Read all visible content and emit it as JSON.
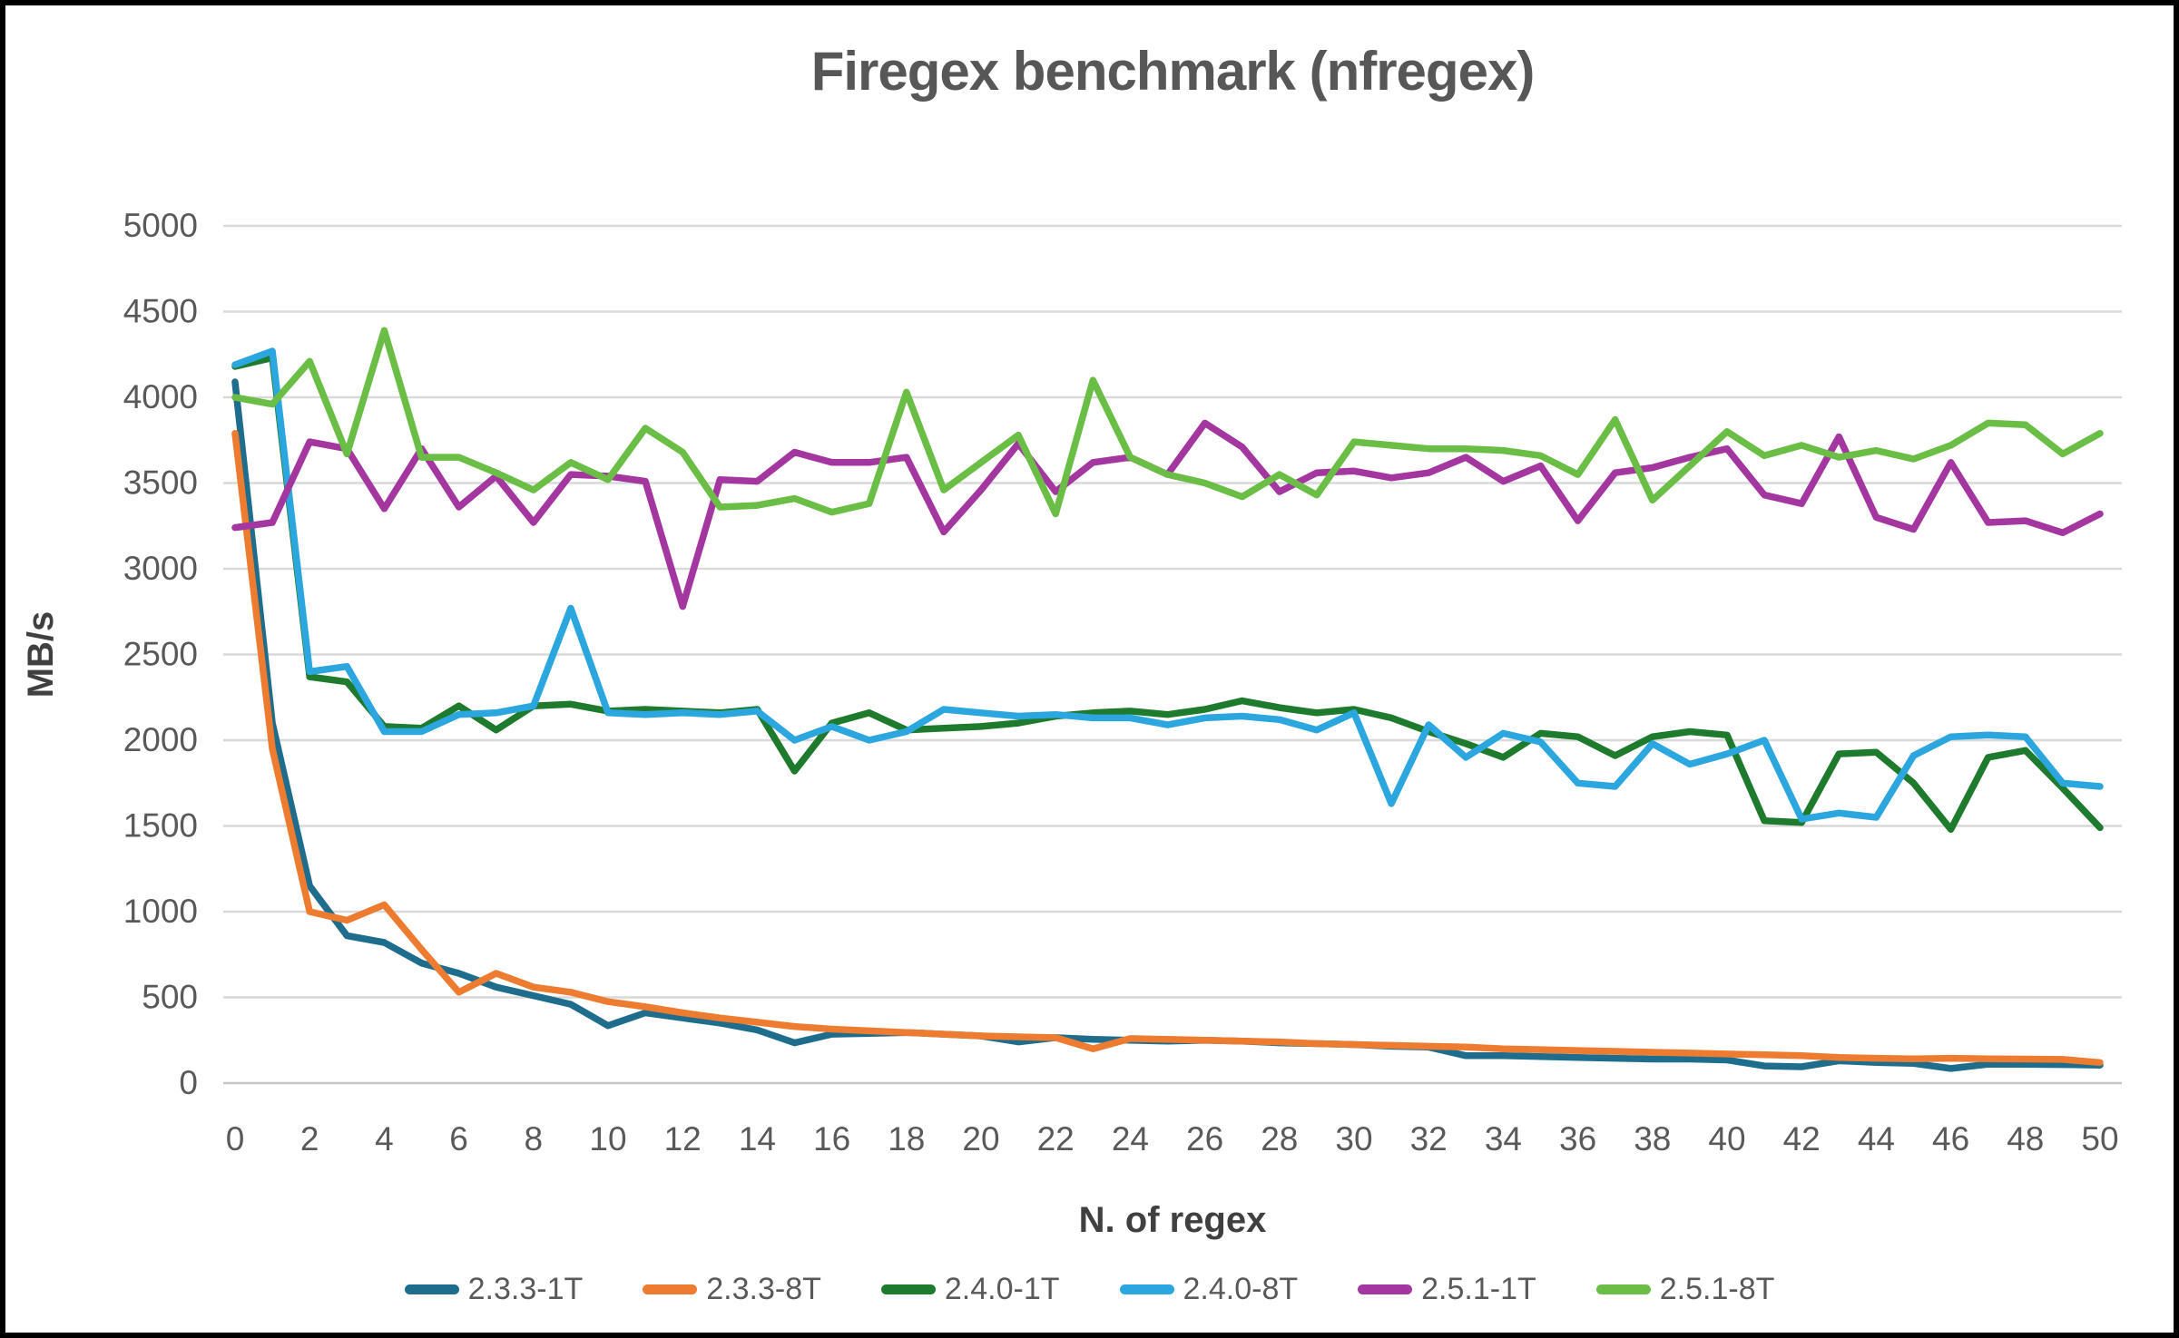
{
  "title": "Firegex benchmark (nfregex)",
  "chart_data": {
    "type": "line",
    "title": "Firegex benchmark (nfregex)",
    "xlabel": "N. of regex",
    "ylabel": "MB/s",
    "xlim": [
      0,
      50
    ],
    "ylim": [
      0,
      5000
    ],
    "x_ticks": [
      0,
      2,
      4,
      6,
      8,
      10,
      12,
      14,
      16,
      18,
      20,
      22,
      24,
      26,
      28,
      30,
      32,
      34,
      36,
      38,
      40,
      42,
      44,
      46,
      48,
      50
    ],
    "y_ticks": [
      0,
      500,
      1000,
      1500,
      2000,
      2500,
      3000,
      3500,
      4000,
      4500,
      5000
    ],
    "grid": true,
    "gridline_color": "#d9d9d9",
    "axis_label_color": "#595959",
    "legend_position": "bottom",
    "x": [
      0,
      1,
      2,
      3,
      4,
      5,
      6,
      7,
      8,
      9,
      10,
      11,
      12,
      13,
      14,
      15,
      16,
      17,
      18,
      19,
      20,
      21,
      22,
      23,
      24,
      25,
      26,
      27,
      28,
      29,
      30,
      31,
      32,
      33,
      34,
      35,
      36,
      37,
      38,
      39,
      40,
      41,
      42,
      43,
      44,
      45,
      46,
      47,
      48,
      49,
      50
    ],
    "series": [
      {
        "name": "2.3.3-1T",
        "color": "#1F6D8C",
        "values": [
          4090,
          2100,
          1150,
          860,
          820,
          700,
          640,
          560,
          510,
          460,
          335,
          410,
          380,
          350,
          310,
          235,
          285,
          290,
          295,
          285,
          275,
          240,
          265,
          255,
          250,
          245,
          250,
          245,
          235,
          230,
          225,
          215,
          210,
          160,
          160,
          155,
          150,
          145,
          140,
          140,
          135,
          100,
          95,
          130,
          120,
          115,
          85,
          110,
          110,
          108,
          105
        ]
      },
      {
        "name": "2.3.3-8T",
        "color": "#ED7C31",
        "values": [
          3790,
          1950,
          1000,
          950,
          1040,
          780,
          530,
          640,
          560,
          530,
          475,
          445,
          410,
          380,
          355,
          330,
          315,
          305,
          295,
          285,
          275,
          270,
          265,
          200,
          260,
          255,
          250,
          245,
          240,
          230,
          225,
          220,
          215,
          210,
          200,
          195,
          190,
          185,
          180,
          175,
          170,
          165,
          160,
          150,
          145,
          142,
          145,
          142,
          140,
          138,
          120
        ]
      },
      {
        "name": "2.4.0-1T",
        "color": "#1E7B2D",
        "values": [
          4180,
          4230,
          2370,
          2340,
          2080,
          2070,
          2200,
          2060,
          2200,
          2210,
          2170,
          2180,
          2170,
          2160,
          2180,
          1820,
          2100,
          2160,
          2060,
          2070,
          2080,
          2100,
          2140,
          2160,
          2170,
          2150,
          2180,
          2230,
          2190,
          2160,
          2180,
          2130,
          2050,
          1980,
          1900,
          2040,
          2020,
          1910,
          2020,
          2050,
          2030,
          1530,
          1520,
          1920,
          1930,
          1750,
          1480,
          1900,
          1940,
          1720,
          1490
        ]
      },
      {
        "name": "2.4.0-8T",
        "color": "#2BA6DE",
        "values": [
          4190,
          4270,
          2400,
          2430,
          2050,
          2050,
          2150,
          2160,
          2200,
          2770,
          2160,
          2150,
          2160,
          2150,
          2170,
          2000,
          2080,
          2000,
          2050,
          2180,
          2160,
          2140,
          2150,
          2130,
          2130,
          2090,
          2130,
          2140,
          2120,
          2060,
          2160,
          1630,
          2090,
          1900,
          2040,
          1990,
          1750,
          1730,
          1980,
          1860,
          1920,
          2000,
          1540,
          1575,
          1550,
          1910,
          2020,
          2030,
          2020,
          1750,
          1730
        ]
      },
      {
        "name": "2.5.1-1T",
        "color": "#A436A0",
        "values": [
          3240,
          3270,
          3740,
          3700,
          3350,
          3700,
          3360,
          3540,
          3270,
          3550,
          3540,
          3510,
          2780,
          3520,
          3510,
          3680,
          3620,
          3620,
          3650,
          3215,
          3460,
          3730,
          3450,
          3620,
          3650,
          3550,
          3850,
          3710,
          3450,
          3560,
          3570,
          3530,
          3560,
          3650,
          3510,
          3600,
          3280,
          3560,
          3590,
          3650,
          3700,
          3430,
          3380,
          3770,
          3300,
          3230,
          3620,
          3270,
          3280,
          3210,
          3320
        ]
      },
      {
        "name": "2.5.1-8T",
        "color": "#6BBE45",
        "values": [
          4000,
          3960,
          4210,
          3670,
          4390,
          3650,
          3650,
          3560,
          3460,
          3620,
          3520,
          3820,
          3680,
          3360,
          3370,
          3410,
          3330,
          3380,
          4030,
          3460,
          3620,
          3780,
          3320,
          4100,
          3650,
          3550,
          3500,
          3420,
          3550,
          3430,
          3740,
          3720,
          3700,
          3700,
          3690,
          3660,
          3550,
          3870,
          3400,
          3600,
          3800,
          3660,
          3720,
          3650,
          3690,
          3640,
          3720,
          3850,
          3840,
          3670,
          3790
        ]
      }
    ]
  }
}
